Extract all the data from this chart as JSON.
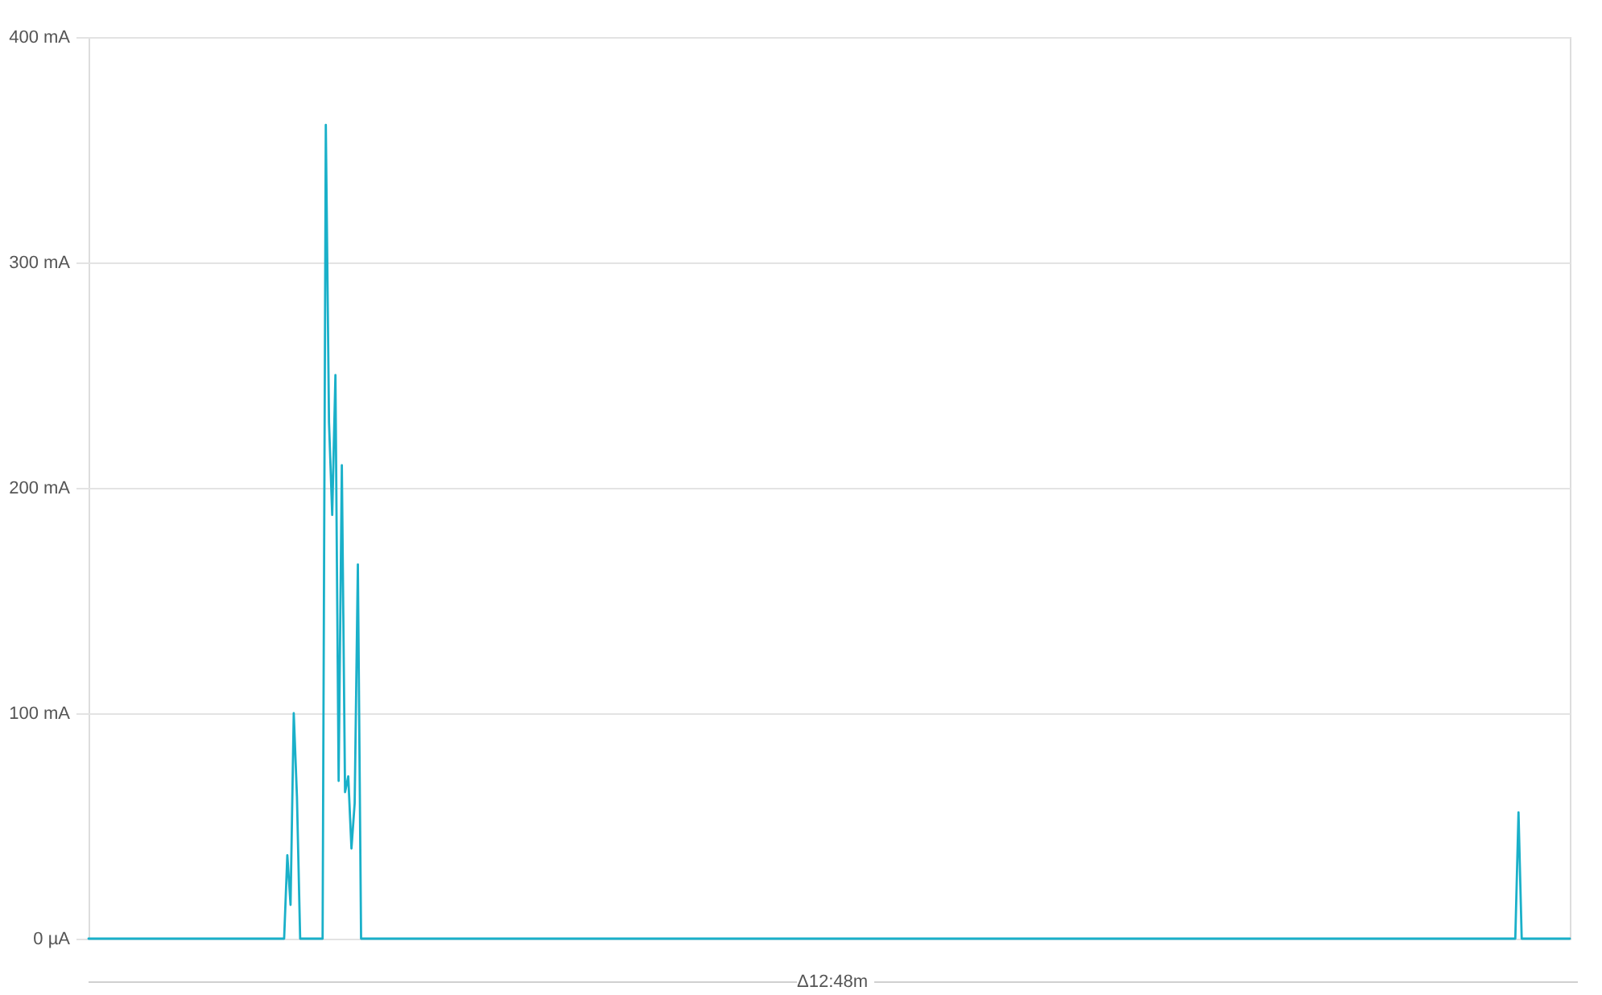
{
  "chart_data": {
    "type": "line",
    "categories": [
      null,
      null,
      null,
      null,
      null,
      null,
      null,
      null,
      null,
      null,
      null,
      null,
      null,
      null,
      null,
      null,
      null,
      null,
      null,
      null,
      null,
      null,
      null,
      null,
      null,
      null,
      null,
      null,
      null,
      null,
      null,
      null,
      null,
      null,
      null,
      null,
      null,
      null,
      null,
      null,
      null,
      null,
      null,
      null,
      null,
      null,
      null,
      null,
      null,
      null,
      null,
      null,
      null,
      null,
      null,
      null,
      null,
      null,
      null,
      null,
      null,
      null,
      null,
      null,
      null,
      null,
      null,
      null,
      null,
      null,
      null,
      null,
      null,
      null,
      null,
      null,
      null,
      null,
      null,
      null,
      null,
      null,
      null,
      null,
      null,
      null,
      null,
      null,
      null,
      null,
      null,
      null,
      null,
      null,
      null,
      null,
      null,
      null,
      null,
      null,
      null,
      null,
      null,
      null,
      null,
      null,
      null,
      null,
      null,
      null,
      null,
      null,
      null,
      null,
      null,
      null,
      null,
      null,
      null,
      null,
      null,
      null,
      null,
      null,
      null,
      null,
      null,
      null,
      null,
      null,
      null,
      null,
      null,
      null,
      null,
      null,
      null,
      null,
      null,
      null,
      null,
      null,
      null,
      null,
      null,
      null,
      null,
      null,
      null,
      null,
      null,
      null,
      null,
      null,
      null,
      null,
      null,
      null,
      null,
      null,
      null,
      null,
      null,
      null,
      null,
      null,
      null,
      null,
      null,
      null,
      null,
      null,
      null,
      null,
      null,
      null,
      null,
      null,
      null,
      null,
      null,
      null,
      null,
      null,
      null,
      null,
      null,
      null,
      null,
      null,
      null,
      null,
      null,
      null,
      null,
      null,
      null,
      null,
      null,
      null,
      null,
      null,
      null,
      null,
      null,
      null,
      null,
      null,
      null,
      null,
      null,
      null,
      null,
      null,
      null,
      null,
      null,
      null,
      null,
      null,
      null,
      null,
      null,
      null,
      null,
      null,
      null,
      null,
      null,
      null,
      null,
      null,
      null,
      null,
      null,
      null,
      null,
      null,
      null,
      null,
      null,
      null,
      null,
      null,
      null,
      null,
      null,
      null,
      null,
      null,
      null,
      null,
      null,
      null,
      null,
      null,
      null,
      null,
      null,
      null,
      null,
      null,
      null,
      null,
      null,
      null,
      null,
      null,
      null,
      null,
      null,
      null,
      null,
      null,
      null,
      null,
      null,
      null,
      null,
      null,
      null,
      null,
      null,
      null,
      null,
      null,
      null,
      null,
      null,
      null,
      null,
      null,
      null,
      null,
      null,
      null,
      null,
      null,
      null,
      null,
      null,
      null,
      null,
      null,
      null,
      null,
      null,
      null,
      null,
      null,
      null,
      null,
      null,
      null,
      null,
      null,
      null,
      null,
      null,
      null,
      null,
      null,
      null,
      null,
      null,
      null,
      null,
      null,
      null,
      null,
      null,
      null,
      null,
      null,
      null,
      null,
      null,
      null,
      null,
      null,
      null,
      null,
      null,
      null,
      null,
      null,
      null,
      null,
      null,
      null,
      null,
      null,
      null,
      null,
      null,
      null,
      null,
      null,
      null,
      null,
      null,
      null,
      null,
      null,
      null,
      null,
      null,
      null,
      null,
      null,
      null,
      null,
      null,
      null,
      null,
      null,
      null,
      null,
      null,
      null,
      null,
      null,
      null,
      null,
      null,
      null,
      null,
      null,
      null,
      null,
      null,
      null,
      null,
      null,
      null,
      null,
      null,
      null,
      null,
      null,
      null,
      null,
      null,
      null,
      null,
      null,
      null,
      null,
      null,
      null,
      null,
      null,
      null,
      null,
      null,
      null,
      null,
      null,
      null,
      null,
      null,
      null,
      null,
      null,
      null,
      null,
      null,
      null,
      null,
      null,
      null,
      null,
      null,
      null,
      null,
      null,
      null,
      null,
      null,
      null,
      null,
      null,
      null,
      null,
      null,
      null,
      null,
      null,
      null,
      null,
      null,
      null,
      null,
      null,
      null,
      null,
      null,
      null,
      null,
      null,
      null,
      null,
      null
    ],
    "series": [
      {
        "color": "#1ab0c9",
        "values": [
          0,
          0,
          0,
          0,
          0,
          0,
          0,
          0,
          0,
          0,
          0,
          0,
          0,
          0,
          0,
          0,
          0,
          0,
          0,
          0,
          0,
          0,
          0,
          0,
          0,
          0,
          0,
          0,
          0,
          0,
          0,
          0,
          0,
          0,
          0,
          0,
          0,
          0,
          0,
          0,
          0,
          0,
          0,
          0,
          0,
          0,
          0,
          0,
          0,
          0,
          0,
          0,
          0,
          0,
          0,
          0,
          0,
          0,
          0,
          0,
          0,
          0,
          37,
          15,
          100,
          63,
          0,
          0,
          0,
          0,
          0,
          0,
          0,
          0,
          361,
          229,
          188,
          250,
          70,
          210,
          65,
          72,
          40,
          60,
          166,
          0,
          0,
          0,
          0,
          0,
          0,
          0,
          0,
          0,
          0,
          0,
          0,
          0,
          0,
          0,
          0,
          0,
          0,
          0,
          0,
          0,
          0,
          0,
          0,
          0,
          0,
          0,
          0,
          0,
          0,
          0,
          0,
          0,
          0,
          0,
          0,
          0,
          0,
          0,
          0,
          0,
          0,
          0,
          0,
          0,
          0,
          0,
          0,
          0,
          0,
          0,
          0,
          0,
          0,
          0,
          0,
          0,
          0,
          0,
          0,
          0,
          0,
          0,
          0,
          0,
          0,
          0,
          0,
          0,
          0,
          0,
          0,
          0,
          0,
          0,
          0,
          0,
          0,
          0,
          0,
          0,
          0,
          0,
          0,
          0,
          0,
          0,
          0,
          0,
          0,
          0,
          0,
          0,
          0,
          0,
          0,
          0,
          0,
          0,
          0,
          0,
          0,
          0,
          0,
          0,
          0,
          0,
          0,
          0,
          0,
          0,
          0,
          0,
          0,
          0,
          0,
          0,
          0,
          0,
          0,
          0,
          0,
          0,
          0,
          0,
          0,
          0,
          0,
          0,
          0,
          0,
          0,
          0,
          0,
          0,
          0,
          0,
          0,
          0,
          0,
          0,
          0,
          0,
          0,
          0,
          0,
          0,
          0,
          0,
          0,
          0,
          0,
          0,
          0,
          0,
          0,
          0,
          0,
          0,
          0,
          0,
          0,
          0,
          0,
          0,
          0,
          0,
          0,
          0,
          0,
          0,
          0,
          0,
          0,
          0,
          0,
          0,
          0,
          0,
          0,
          0,
          0,
          0,
          0,
          0,
          0,
          0,
          0,
          0,
          0,
          0,
          0,
          0,
          0,
          0,
          0,
          0,
          0,
          0,
          0,
          0,
          0,
          0,
          0,
          0,
          0,
          0,
          0,
          0,
          0,
          0,
          0,
          0,
          0,
          0,
          0,
          0,
          0,
          0,
          0,
          0,
          0,
          0,
          0,
          0,
          0,
          0,
          0,
          0,
          0,
          0,
          0,
          0,
          0,
          0,
          0,
          0,
          0,
          0,
          0,
          0,
          0,
          0,
          0,
          0,
          0,
          0,
          0,
          0,
          0,
          0,
          0,
          0,
          0,
          0,
          0,
          0,
          0,
          0,
          0,
          0,
          0,
          0,
          0,
          0,
          0,
          0,
          0,
          0,
          0,
          0,
          0,
          0,
          0,
          0,
          0,
          0,
          0,
          0,
          0,
          0,
          0,
          0,
          0,
          0,
          0,
          0,
          0,
          0,
          0,
          0,
          0,
          0,
          0,
          0,
          0,
          0,
          0,
          0,
          0,
          0,
          0,
          0,
          0,
          0,
          0,
          0,
          0,
          0,
          0,
          0,
          0,
          0,
          0,
          0,
          0,
          0,
          0,
          0,
          0,
          0,
          0,
          0,
          0,
          0,
          0,
          0,
          0,
          0,
          0,
          0,
          0,
          0,
          0,
          0,
          0,
          0,
          0,
          0,
          0,
          0,
          0,
          0,
          0,
          0,
          0,
          0,
          0,
          0,
          0,
          0,
          0,
          0,
          0,
          0,
          0,
          0,
          0,
          0,
          0,
          0,
          56,
          0,
          0,
          0,
          0,
          0,
          0,
          0,
          0,
          0,
          0,
          0,
          0,
          0,
          0,
          0,
          0
        ]
      }
    ],
    "ylim": [
      0,
      400
    ],
    "yticks": [
      {
        "value": 0,
        "label": "0 µA"
      },
      {
        "value": 100,
        "label": "100 mA"
      },
      {
        "value": 200,
        "label": "200 mA"
      },
      {
        "value": 300,
        "label": "300 mA"
      },
      {
        "value": 400,
        "label": "400 mA"
      }
    ],
    "grid": "y",
    "legend": false,
    "tick_labels": "y",
    "line_style": "solid",
    "marker": "none",
    "annotations": [
      "Δ12:48m"
    ]
  }
}
